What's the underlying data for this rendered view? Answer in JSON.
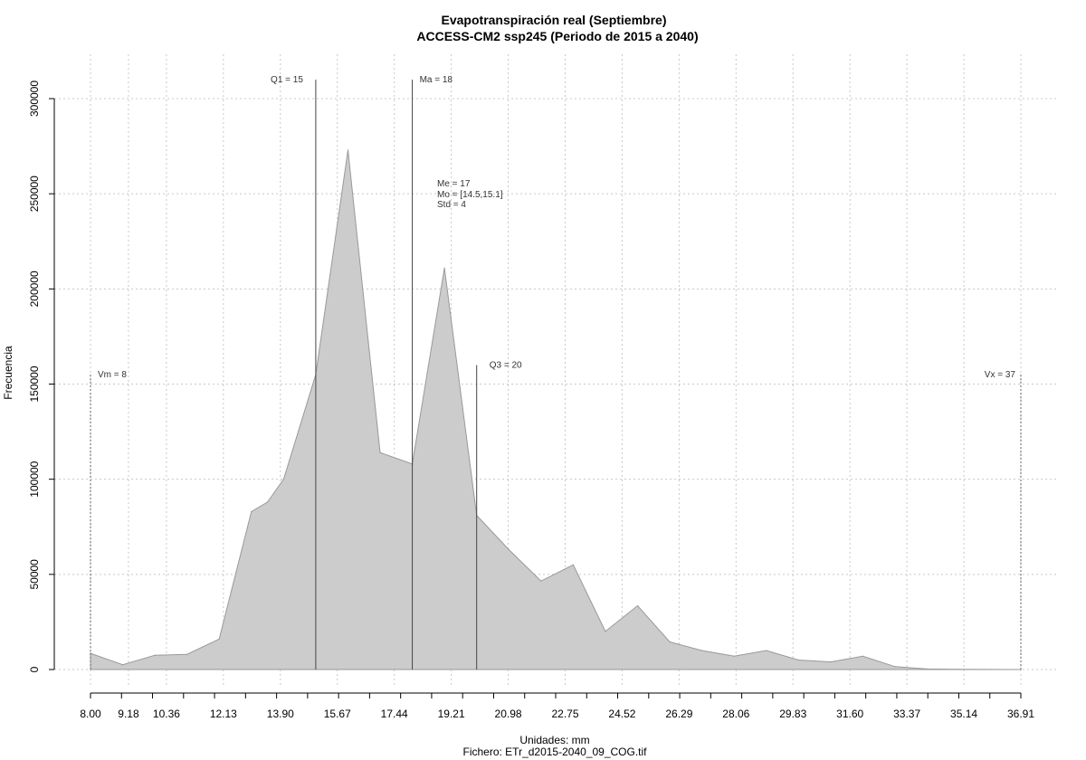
{
  "chart_data": {
    "type": "area",
    "title": "Evapotranspiración real (Septiembre)",
    "subtitle": "ACCESS-CM2 ssp245 (Periodo de 2015 a 2040)",
    "xlabel": "Unidades: mm",
    "caption": "Fichero: ETr_d2015-2040_09_COG.tif",
    "ylabel": "Frecuencia",
    "xlim": [
      8.0,
      36.91
    ],
    "ylim": [
      0,
      300000
    ],
    "x_tick_labels": [
      "8.00",
      "9.18",
      "10.36",
      "12.13",
      "13.90",
      "15.67",
      "17.44",
      "19.21",
      "20.98",
      "22.75",
      "24.52",
      "26.29",
      "28.06",
      "29.83",
      "31.60",
      "33.37",
      "35.14",
      "36.91"
    ],
    "y_tick_labels": [
      "0",
      "50000",
      "100000",
      "150000",
      "200000",
      "250000",
      "300000"
    ],
    "fill_color": "#cccccc",
    "line_color": "#999999",
    "series": [
      {
        "x": [
          8.0,
          9.0,
          10.0,
          11.0,
          12.0,
          13.0,
          13.5,
          14.0,
          15.0,
          16.0,
          17.0,
          18.0,
          19.0,
          20.0,
          21.0,
          22.0,
          23.0,
          24.0,
          25.0,
          26.0,
          27.0,
          28.0,
          29.0,
          30.0,
          31.0,
          32.0,
          33.0,
          34.0,
          35.0,
          36.0,
          36.91
        ],
        "y": [
          8500,
          2500,
          7500,
          8000,
          16000,
          83000,
          88000,
          100000,
          155000,
          273000,
          114000,
          108000,
          211000,
          81000,
          63000,
          46500,
          55000,
          20000,
          33500,
          14500,
          10000,
          7000,
          10000,
          5000,
          4000,
          7000,
          1500,
          300,
          100,
          50,
          0
        ]
      }
    ],
    "annotations": [
      {
        "label": "Vm = 8",
        "x": 8.0,
        "y": 155000,
        "style": "dotted"
      },
      {
        "label": "Q1 = 15",
        "x": 15.0,
        "y": 310000,
        "style": "solid"
      },
      {
        "label": "Ma = 18",
        "x": 18.0,
        "y": 310000,
        "style": "solid"
      },
      {
        "label": "Q3 = 20",
        "x": 20.0,
        "y": 160000,
        "style": "solid"
      },
      {
        "label": "Vx = 37",
        "x": 36.91,
        "y": 155000,
        "style": "dotted"
      }
    ],
    "stats_text": [
      "Me = 17",
      "Mo = [14.5,15.1]",
      "Std = 4"
    ],
    "grid": true
  }
}
